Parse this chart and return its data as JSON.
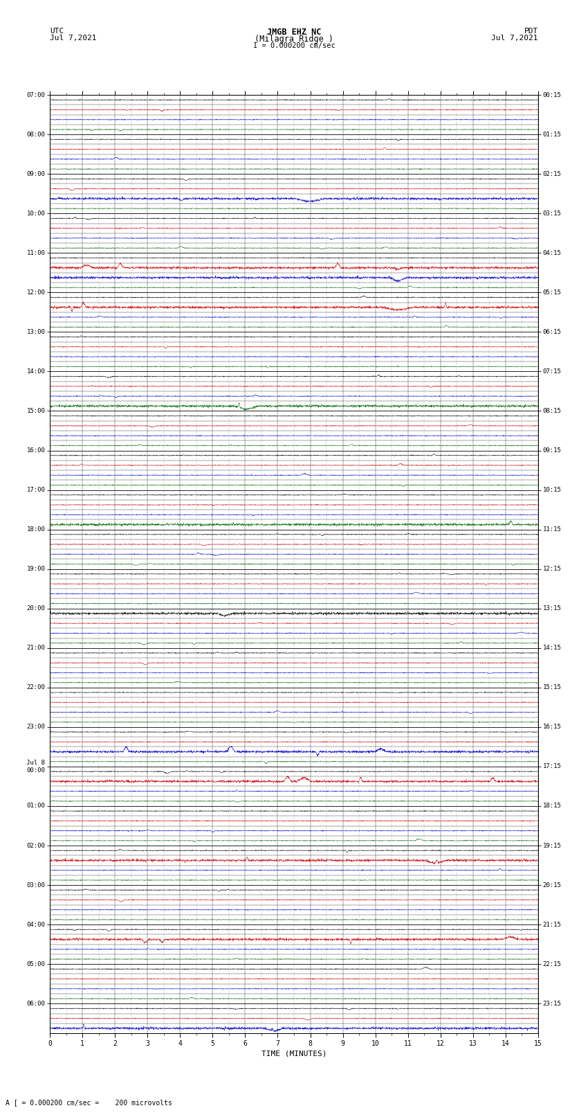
{
  "title_line1": "JMGB EHZ NC",
  "title_line2": "(Milagra Ridge )",
  "title_line3": "I = 0.000200 cm/sec",
  "utc_label": "UTC",
  "utc_date": "Jul 7,2021",
  "pdt_label": "PDT",
  "pdt_date": "Jul 7,2021",
  "xlabel": "TIME (MINUTES)",
  "footer": "A [ = 0.000200 cm/sec =    200 microvolts",
  "background_color": "#ffffff",
  "xmin": 0,
  "xmax": 15,
  "left_times": [
    "07:00",
    "",
    "",
    "",
    "08:00",
    "",
    "",
    "",
    "09:00",
    "",
    "",
    "",
    "10:00",
    "",
    "",
    "",
    "11:00",
    "",
    "",
    "",
    "12:00",
    "",
    "",
    "",
    "13:00",
    "",
    "",
    "",
    "14:00",
    "",
    "",
    "",
    "15:00",
    "",
    "",
    "",
    "16:00",
    "",
    "",
    "",
    "17:00",
    "",
    "",
    "",
    "18:00",
    "",
    "",
    "",
    "19:00",
    "",
    "",
    "",
    "20:00",
    "",
    "",
    "",
    "21:00",
    "",
    "",
    "",
    "22:00",
    "",
    "",
    "",
    "23:00",
    "",
    "",
    "",
    "Jul 8\n00:00",
    "",
    "",
    "",
    "01:00",
    "",
    "",
    "",
    "02:00",
    "",
    "",
    "",
    "03:00",
    "",
    "",
    "",
    "04:00",
    "",
    "",
    "",
    "05:00",
    "",
    "",
    "",
    "06:00",
    "",
    ""
  ],
  "right_times": [
    "00:15",
    "",
    "",
    "",
    "01:15",
    "",
    "",
    "",
    "02:15",
    "",
    "",
    "",
    "03:15",
    "",
    "",
    "",
    "04:15",
    "",
    "",
    "",
    "05:15",
    "",
    "",
    "",
    "06:15",
    "",
    "",
    "",
    "07:15",
    "",
    "",
    "",
    "08:15",
    "",
    "",
    "",
    "09:15",
    "",
    "",
    "",
    "10:15",
    "",
    "",
    "",
    "11:15",
    "",
    "",
    "",
    "12:15",
    "",
    "",
    "",
    "13:15",
    "",
    "",
    "",
    "14:15",
    "",
    "",
    "",
    "15:15",
    "",
    "",
    "",
    "16:15",
    "",
    "",
    "",
    "17:15",
    "",
    "",
    "",
    "18:15",
    "",
    "",
    "",
    "19:15",
    "",
    "",
    "",
    "20:15",
    "",
    "",
    "",
    "21:15",
    "",
    "",
    "",
    "22:15",
    "",
    "",
    "",
    "23:15",
    "",
    ""
  ],
  "row_colors": [
    "#000000",
    "#cc0000",
    "#0000cc",
    "#006600"
  ],
  "fig_width": 8.5,
  "fig_height": 16.13
}
